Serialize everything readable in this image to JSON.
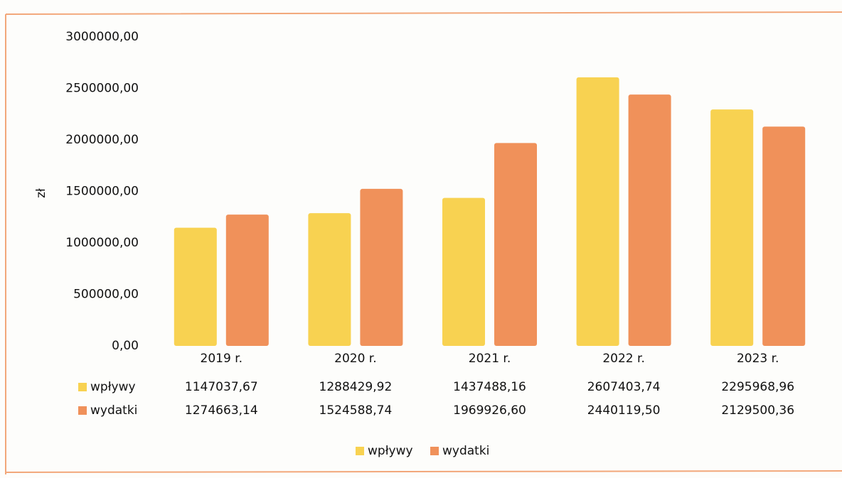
{
  "chart_data": {
    "type": "bar",
    "y_label": "zł",
    "categories": [
      "2019 r.",
      "2020 r.",
      "2021 r.",
      "2022 r.",
      "2023 r."
    ],
    "series": [
      {
        "name": "wpływy",
        "color": "#f8d251",
        "values": [
          1147037.67,
          1288429.92,
          1437488.16,
          2607403.74,
          2295968.96
        ],
        "value_labels": [
          "1147037,67",
          "1288429,92",
          "1437488,16",
          "2607403,74",
          "2295968,96"
        ]
      },
      {
        "name": "wydatki",
        "color": "#f0915a",
        "values": [
          1274663.14,
          1524588.74,
          1969926.6,
          2440119.5,
          2129500.36
        ],
        "value_labels": [
          "1274663,14",
          "1524588,74",
          "1969926,60",
          "2440119,50",
          "2129500,36"
        ]
      }
    ],
    "ylim": [
      0,
      3000000
    ],
    "yticks": [
      {
        "value": 0,
        "label": "0,00"
      },
      {
        "value": 500000,
        "label": "500000,00"
      },
      {
        "value": 1000000,
        "label": "1000000,00"
      },
      {
        "value": 1500000,
        "label": "1500000,00"
      },
      {
        "value": 2000000,
        "label": "2000000,00"
      },
      {
        "value": 2500000,
        "label": "2500000,00"
      },
      {
        "value": 3000000,
        "label": "3000000,00"
      }
    ],
    "grid": false,
    "legend": "bottom"
  }
}
